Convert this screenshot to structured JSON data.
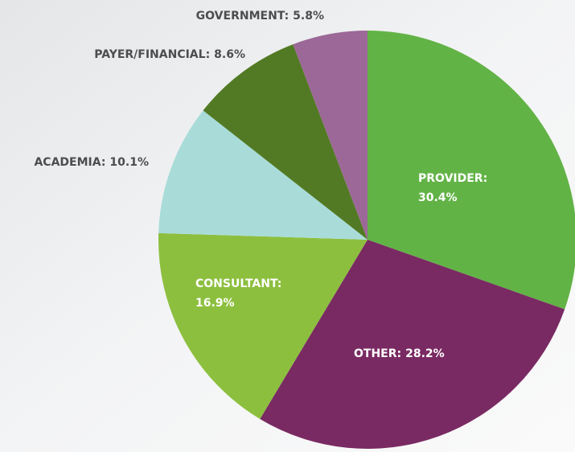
{
  "chart_data": {
    "type": "pie",
    "categories": [
      "PROVIDER:",
      "OTHER:",
      "CONSULTANT:",
      "ACADEMIA:",
      "PAYER/FINANCIAL:",
      "GOVERNMENT:"
    ],
    "values": [
      30.4,
      28.2,
      16.9,
      10.1,
      8.6,
      5.8
    ],
    "value_labels": [
      "30.4%",
      "28.2%",
      "16.9%",
      "10.1%",
      "8.6%",
      "5.8%"
    ],
    "colors": [
      "#62b346",
      "#7a2a63",
      "#8dbf3f",
      "#a9dcd8",
      "#527a24",
      "#9c6897"
    ]
  }
}
